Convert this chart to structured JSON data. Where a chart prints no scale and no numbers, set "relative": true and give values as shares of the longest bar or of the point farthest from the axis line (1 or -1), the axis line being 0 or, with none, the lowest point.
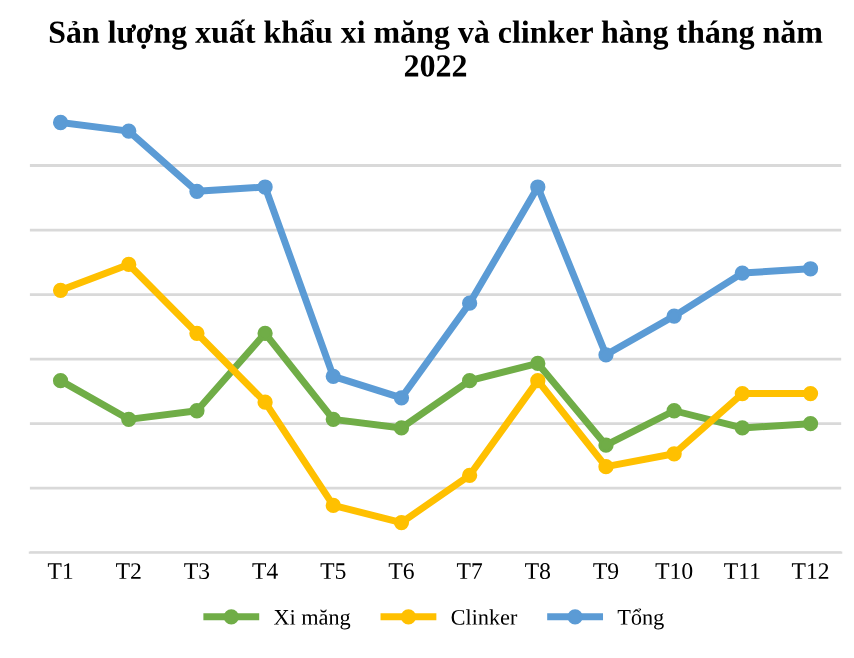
{
  "chart_data": {
    "type": "line",
    "title": "Sản lượng xuất khẩu xi măng và clinker hàng tháng năm 2022",
    "relative": true,
    "categories": [
      "T1",
      "T2",
      "T3",
      "T4",
      "T5",
      "T6",
      "T7",
      "T8",
      "T9",
      "T10",
      "T11",
      "T12"
    ],
    "series": [
      {
        "name": "Xi măng",
        "color": "#70ad47",
        "values": [
          0.4,
          0.31,
          0.33,
          0.51,
          0.31,
          0.29,
          0.4,
          0.44,
          0.25,
          0.33,
          0.29,
          0.3
        ]
      },
      {
        "name": "Clinker",
        "color": "#ffc000",
        "values": [
          0.61,
          0.67,
          0.51,
          0.35,
          0.11,
          0.07,
          0.18,
          0.4,
          0.2,
          0.23,
          0.37,
          0.37
        ]
      },
      {
        "name": "Tổng",
        "color": "#5b9bd5",
        "values": [
          1,
          0.98,
          0.84,
          0.85,
          0.41,
          0.36,
          0.58,
          0.85,
          0.46,
          0.55,
          0.65,
          0.66
        ]
      }
    ],
    "grid": "y",
    "legend": "bottom",
    "marker": "circle",
    "line_style": "solid"
  }
}
